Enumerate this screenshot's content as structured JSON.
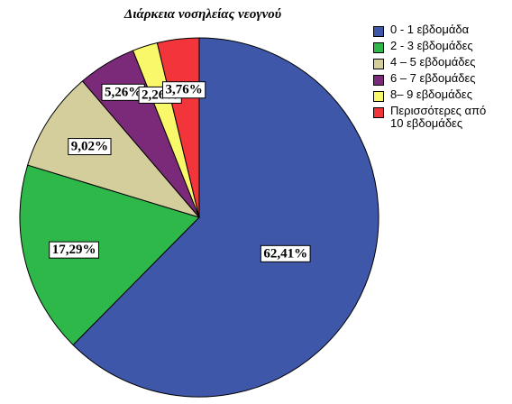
{
  "chart_data": {
    "type": "pie",
    "title": "Διάρκεια νοσηλείας νεογνού",
    "slices": [
      {
        "label": "0 - 1 εβδομάδα",
        "value": 62.41,
        "display": "62,41%",
        "color": "#3f57a8"
      },
      {
        "label": "2 - 3 εβδομάδες",
        "value": 17.29,
        "display": "17,29%",
        "color": "#2eb84a"
      },
      {
        "label": "4 – 5 εβδομάδες",
        "value": 9.02,
        "display": "9,02%",
        "color": "#d4cd9c"
      },
      {
        "label": "6 – 7 εβδομάδες",
        "value": 5.26,
        "display": "5,26%",
        "color": "#7a2a78"
      },
      {
        "label": "8– 9 εβδομάδες",
        "value": 2.26,
        "display": "2,26%",
        "color": "#f9f76a"
      },
      {
        "label": "Περισσότερες από\n10 εβδομάδες",
        "value": 3.76,
        "display": "3,76%",
        "color": "#f2353a"
      }
    ],
    "legend_position": "right"
  }
}
